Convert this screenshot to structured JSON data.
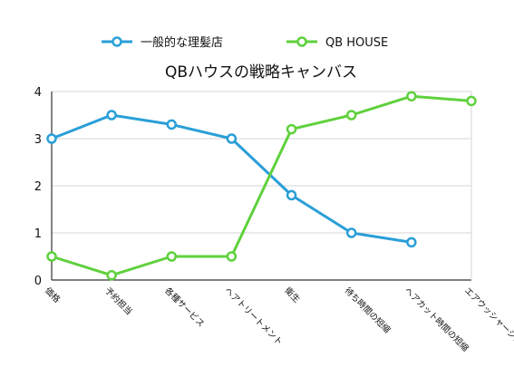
{
  "chart_data": {
    "type": "line",
    "title": "QBハウスの戦略キャンバス",
    "xlabel": "",
    "ylabel": "",
    "ylim": [
      0,
      4
    ],
    "yticks": [
      0,
      1,
      2,
      3,
      4
    ],
    "grid": true,
    "legend_position": "top-center",
    "categories": [
      "価格",
      "予約担当",
      "各種サービス",
      "ヘアトリートメント",
      "衛生",
      "待ち時間の短縮",
      "ヘアカット時間の短縮",
      "エアウッシャーシステム"
    ],
    "series": [
      {
        "name": "一般的な理髪店",
        "color": "#2a9fd8",
        "values": [
          3.0,
          3.5,
          3.3,
          3.0,
          1.8,
          1.0,
          0.8,
          null
        ]
      },
      {
        "name": "QB HOUSE",
        "color": "#5fd13d",
        "values": [
          0.5,
          0.1,
          0.5,
          0.5,
          3.2,
          3.5,
          3.9,
          3.8
        ]
      }
    ]
  }
}
